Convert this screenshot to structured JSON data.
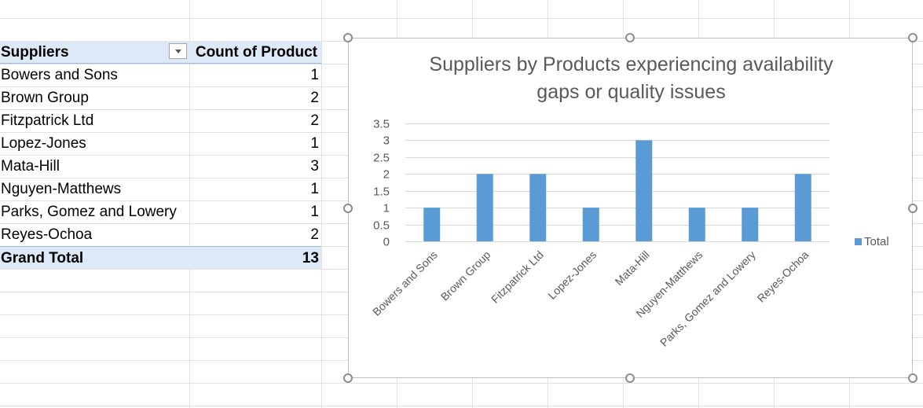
{
  "pivot": {
    "header": {
      "row_label": "Suppliers",
      "value_label": "Count of Product"
    },
    "rows": [
      {
        "supplier": "Bowers and Sons",
        "count": "1"
      },
      {
        "supplier": "Brown Group",
        "count": "2"
      },
      {
        "supplier": "Fitzpatrick Ltd",
        "count": "2"
      },
      {
        "supplier": "Lopez-Jones",
        "count": "1"
      },
      {
        "supplier": "Mata-Hill",
        "count": "3"
      },
      {
        "supplier": "Nguyen-Matthews",
        "count": "1"
      },
      {
        "supplier": "Parks, Gomez and Lowery",
        "count": "1"
      },
      {
        "supplier": "Reyes-Ochoa",
        "count": "2"
      }
    ],
    "total": {
      "label": "Grand Total",
      "value": "13"
    }
  },
  "chart_data": {
    "type": "bar",
    "title_lines": [
      "Suppliers by Products experiencing availability",
      "gaps or quality issues"
    ],
    "categories": [
      "Bowers and Sons",
      "Brown Group",
      "Fitzpatrick Ltd",
      "Lopez-Jones",
      "Mata-Hill",
      "Nguyen-Matthews",
      "Parks, Gomez and Lowery",
      "Reyes-Ochoa"
    ],
    "series": [
      {
        "name": "Total",
        "values": [
          1,
          2,
          2,
          1,
          3,
          1,
          1,
          2
        ],
        "color": "#5b9bd5"
      }
    ],
    "yticks": [
      "0",
      "0.5",
      "1",
      "1.5",
      "2",
      "2.5",
      "3",
      "3.5"
    ],
    "ylim": [
      0,
      3.5
    ],
    "grid": true,
    "legend_position": "right"
  }
}
